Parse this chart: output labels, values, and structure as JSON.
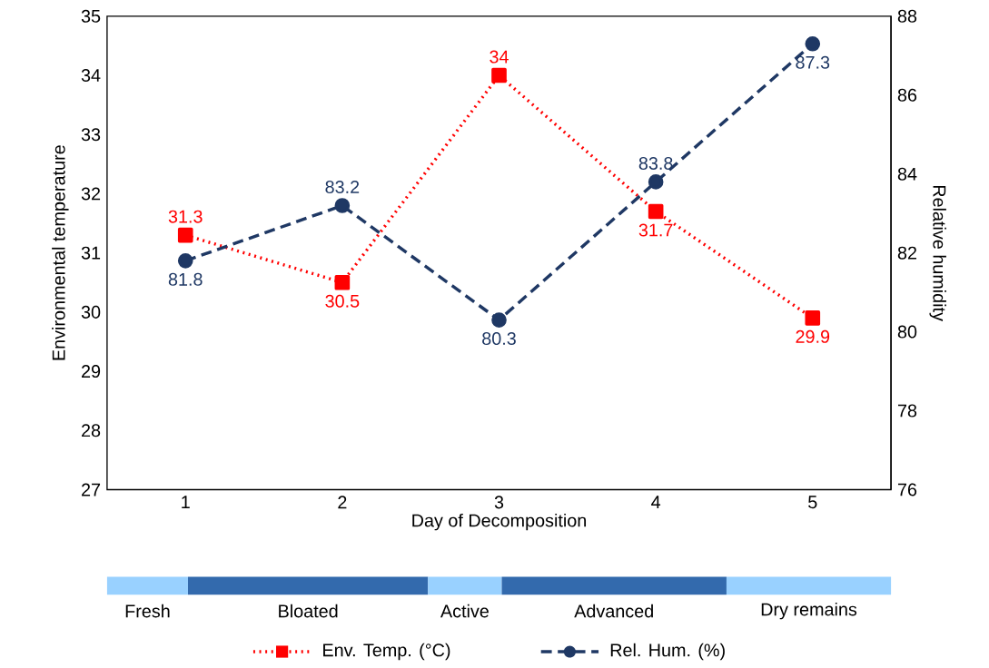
{
  "chart_data": {
    "type": "line",
    "xlabel": "Day of Decomposition",
    "ylabel": "Environmental temperature",
    "y2label": "Relative humidity",
    "categories": [
      "1",
      "2",
      "3",
      "4",
      "5"
    ],
    "series": [
      {
        "name": "Env. Temp. (°C)",
        "color": "#ff0000",
        "values": [
          31.3,
          30.5,
          34,
          31.7,
          29.9
        ],
        "marker": "square",
        "line_style": "dotted"
      },
      {
        "name": "Rel. Hum. (%)",
        "color": "#1f3864",
        "values": [
          81.8,
          83.2,
          80.3,
          83.8,
          87.3
        ],
        "marker": "circle",
        "line_style": "dashed",
        "axis": "y2"
      }
    ],
    "ylim": [
      27,
      35
    ],
    "yticks": [
      27,
      28,
      29,
      30,
      31,
      32,
      33,
      34,
      35
    ],
    "y2lim": [
      76,
      88
    ],
    "y2ticks": [
      76,
      78,
      80,
      82,
      84,
      86,
      88
    ],
    "data_labels": true,
    "grid": false,
    "legend": "bottom",
    "annotations": [
      "Fresh",
      "Bloated",
      "Active",
      "Advanced",
      "Dry remains"
    ]
  }
}
